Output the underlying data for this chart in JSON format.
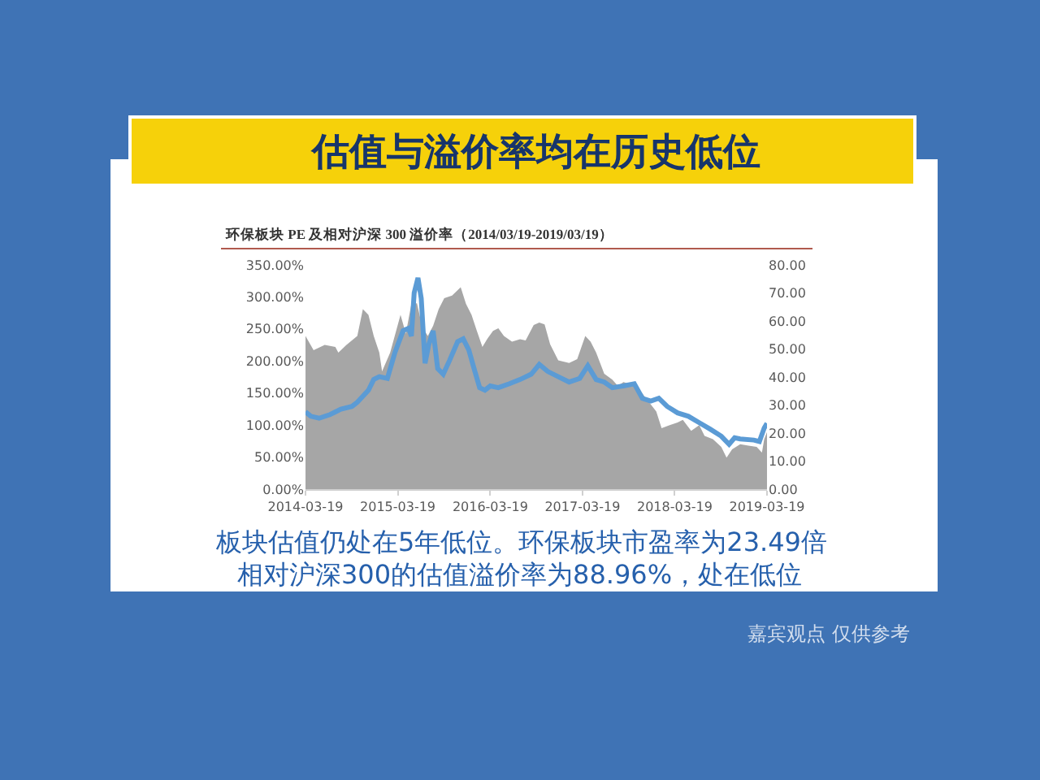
{
  "chart_data": {
    "type": "area",
    "title": "估值与溢价率均在历史低位",
    "subtitle": "环保板块 PE 及相对沪深 300 溢价率（2014/03/19-2019/03/19）",
    "annotations": [
      "板块估值仍处在5年低位。环保板块市盈率为23.49倍",
      "相对沪深300的估值溢价率为88.96%，处在低位",
      "嘉宾观点 仅供参考"
    ],
    "xlim": [
      "2014-03-19",
      "2019-03-19"
    ],
    "xticks": [
      "2014-03-19",
      "2015-03-19",
      "2016-03-19",
      "2017-03-19",
      "2018-03-19",
      "2019-03-19"
    ],
    "ylim": [
      0,
      350
    ],
    "yticks": [
      {
        "value": 0,
        "label": "0.00%"
      },
      {
        "value": 50,
        "label": "50.00%"
      },
      {
        "value": 100,
        "label": "100.00%"
      },
      {
        "value": 150,
        "label": "150.00%"
      },
      {
        "value": 200,
        "label": "200.00%"
      },
      {
        "value": 250,
        "label": "250.00%"
      },
      {
        "value": 300,
        "label": "300.00%"
      },
      {
        "value": 350,
        "label": "350.00%"
      }
    ],
    "y2lim": [
      0,
      80
    ],
    "y2ticks": [
      {
        "value": 0,
        "label": "0.00"
      },
      {
        "value": 10,
        "label": "10.00"
      },
      {
        "value": 20,
        "label": "20.00"
      },
      {
        "value": 30,
        "label": "30.00"
      },
      {
        "value": 40,
        "label": "40.00"
      },
      {
        "value": 50,
        "label": "50.00"
      },
      {
        "value": 60,
        "label": "60.00"
      },
      {
        "value": 70,
        "label": "70.00"
      },
      {
        "value": 80,
        "label": "80.00"
      }
    ],
    "series": [
      {
        "color": "#a6a6a6",
        "x": [
          "2014-03-19",
          "2014-04-20",
          "2014-06-03",
          "2014-07-15",
          "2014-07-27",
          "2014-08-28",
          "2014-10-10",
          "2014-11-01",
          "2014-11-23",
          "2014-12-14",
          "2015-01-05",
          "2015-01-16",
          "2015-02-17",
          "2015-03-30",
          "2015-04-20",
          "2015-05-12",
          "2015-06-03",
          "2015-06-24",
          "2015-07-16",
          "2015-08-06",
          "2015-08-28",
          "2015-09-19",
          "2015-10-20",
          "2015-11-23",
          "2015-12-14",
          "2016-01-05",
          "2016-01-26",
          "2016-02-17",
          "2016-03-08",
          "2016-03-30",
          "2016-04-20",
          "2016-05-12",
          "2016-06-13",
          "2016-07-15",
          "2016-08-06",
          "2016-09-07",
          "2016-09-29",
          "2016-10-20",
          "2016-11-11",
          "2016-12-13",
          "2017-01-25",
          "2017-02-26",
          "2017-03-30",
          "2017-04-20",
          "2017-05-12",
          "2017-06-13",
          "2017-07-15",
          "2017-08-06",
          "2017-08-28",
          "2017-09-29",
          "2017-11-01",
          "2017-12-03",
          "2018-01-05",
          "2018-01-26",
          "2018-02-27",
          "2018-03-30",
          "2018-04-20",
          "2018-05-23",
          "2018-06-24",
          "2018-07-15",
          "2018-08-17",
          "2018-09-19",
          "2018-10-10",
          "2018-11-01",
          "2018-12-03",
          "2019-01-05",
          "2019-02-06",
          "2019-02-27",
          "2019-03-08",
          "2019-03-19"
        ],
        "values": [
          239,
          217,
          225,
          222,
          213,
          225,
          239,
          281,
          272,
          239,
          213,
          184,
          213,
          272,
          243,
          289,
          290,
          253,
          239,
          255,
          281,
          298,
          302,
          315,
          289,
          272,
          247,
          222,
          235,
          247,
          251,
          239,
          230,
          234,
          232,
          256,
          260,
          257,
          226,
          201,
          197,
          203,
          239,
          230,
          213,
          180,
          171,
          161,
          167,
          163,
          154,
          138,
          121,
          95,
          100,
          104,
          108,
          91,
          100,
          83,
          78,
          66,
          49,
          62,
          70,
          68,
          66,
          57,
          78,
          89
        ]
      },
      {
        "type": "line",
        "axis": "y2",
        "color": "#5b9bd5",
        "x": [
          "2014-03-19",
          "2014-04-09",
          "2014-05-12",
          "2014-06-24",
          "2014-08-06",
          "2014-09-19",
          "2014-10-10",
          "2014-11-23",
          "2014-12-14",
          "2015-01-05",
          "2015-02-06",
          "2015-03-08",
          "2015-04-09",
          "2015-05-01",
          "2015-05-12",
          "2015-05-23",
          "2015-06-07",
          "2015-06-20",
          "2015-07-05",
          "2015-07-20",
          "2015-08-06",
          "2015-08-24",
          "2015-09-15",
          "2015-10-10",
          "2015-11-11",
          "2015-12-03",
          "2015-12-25",
          "2016-01-15",
          "2016-02-06",
          "2016-02-27",
          "2016-03-19",
          "2016-04-20",
          "2016-06-03",
          "2016-07-15",
          "2016-08-28",
          "2016-09-29",
          "2016-11-01",
          "2016-12-13",
          "2017-01-25",
          "2017-03-08",
          "2017-04-09",
          "2017-05-12",
          "2017-06-13",
          "2017-07-15",
          "2017-08-28",
          "2017-10-10",
          "2017-11-11",
          "2017-12-14",
          "2018-01-15",
          "2018-02-17",
          "2018-03-30",
          "2018-05-12",
          "2018-06-24",
          "2018-08-06",
          "2018-09-19",
          "2018-10-20",
          "2018-11-11",
          "2018-12-03",
          "2019-01-26",
          "2019-02-17",
          "2019-03-08",
          "2019-03-19"
        ],
        "values": [
          27.6,
          26.0,
          25.3,
          26.6,
          28.5,
          29.5,
          31.0,
          35.3,
          39.1,
          40.1,
          39.5,
          48.8,
          56.5,
          57.4,
          54.6,
          70.0,
          75.4,
          68.0,
          44.9,
          51.7,
          56.5,
          43.0,
          41.0,
          45.9,
          52.6,
          53.6,
          49.7,
          43.0,
          36.2,
          35.3,
          36.8,
          36.2,
          37.6,
          39.1,
          41.0,
          44.5,
          42.0,
          40.1,
          38.2,
          39.5,
          44.0,
          39.1,
          38.2,
          36.2,
          36.8,
          37.6,
          32.4,
          31.4,
          32.4,
          29.5,
          27.2,
          26.0,
          23.7,
          21.4,
          18.9,
          16.0,
          18.3,
          17.9,
          17.5,
          17.0,
          21.8,
          23.5
        ]
      }
    ]
  }
}
